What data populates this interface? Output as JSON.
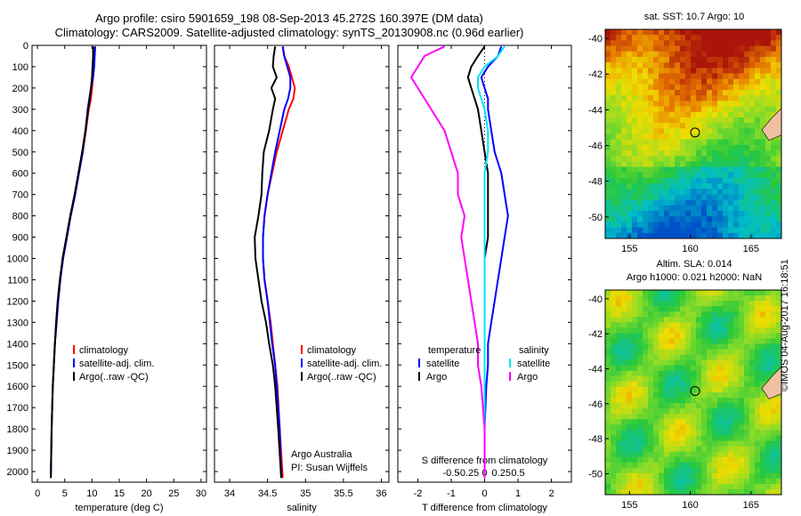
{
  "header": {
    "line1": "Argo profile: csiro 5901659_198 08-Sep-2013 45.272S 160.397E (DM data)",
    "line2": "Climatology: CARS2009. Satellite-adjusted climatology: synTS_20130908.nc (0.96d earlier)"
  },
  "colors": {
    "climatology": "#ff0000",
    "satellite": "#0000ff",
    "argo": "#000000",
    "sat_cyan": "#00e5ff",
    "argo_magenta": "#ff00ff"
  },
  "chart_data": [
    {
      "type": "line",
      "panel": "temperature",
      "xlabel": "temperature (deg C)",
      "xlim": [
        -1,
        31
      ],
      "xticks": [
        0,
        5,
        10,
        15,
        20,
        25,
        30
      ],
      "ylim": [
        2050,
        0
      ],
      "yticks": [
        0,
        100,
        200,
        300,
        400,
        500,
        600,
        700,
        800,
        900,
        1000,
        1100,
        1200,
        1300,
        1400,
        1500,
        1600,
        1700,
        1800,
        1900,
        2000
      ],
      "legend": [
        "climatology",
        "satellite-adj. clim.",
        "Argo(..raw -QC)"
      ],
      "series": [
        {
          "name": "climatology",
          "x": [
            10.3,
            10.3,
            10.3,
            10.2,
            10.0,
            9.8,
            9.4,
            8.9,
            8.3,
            7.6,
            6.9,
            6.1,
            5.4,
            4.7,
            4.2,
            3.8,
            3.5,
            3.2,
            3.0,
            2.8,
            2.6,
            2.45
          ],
          "y": [
            5,
            50,
            100,
            150,
            200,
            250,
            300,
            400,
            500,
            600,
            700,
            800,
            900,
            1000,
            1100,
            1200,
            1300,
            1400,
            1500,
            1600,
            1800,
            2030
          ]
        },
        {
          "name": "satellite-adj. clim.",
          "x": [
            10.6,
            10.5,
            10.4,
            10.2,
            9.8,
            9.5,
            9.2,
            8.8,
            8.3,
            7.6,
            6.9,
            6.1,
            5.4,
            4.7,
            4.2,
            3.8,
            3.5,
            3.2,
            3.0,
            2.8,
            2.6,
            2.45
          ],
          "y": [
            5,
            50,
            100,
            150,
            200,
            250,
            300,
            400,
            500,
            600,
            700,
            800,
            900,
            1000,
            1100,
            1200,
            1300,
            1400,
            1500,
            1600,
            1800,
            2030
          ]
        },
        {
          "name": "Argo(..raw -QC)",
          "x": [
            10.2,
            10.2,
            10.1,
            10.0,
            9.8,
            9.6,
            9.3,
            8.8,
            8.2,
            7.5,
            6.8,
            6.0,
            5.3,
            4.6,
            4.1,
            3.7,
            3.4,
            3.2,
            3.0,
            2.8,
            2.6,
            2.45
          ],
          "y": [
            5,
            50,
            100,
            150,
            200,
            250,
            300,
            400,
            500,
            600,
            700,
            800,
            900,
            1000,
            1100,
            1200,
            1300,
            1400,
            1500,
            1600,
            1800,
            2030
          ]
        }
      ]
    },
    {
      "type": "line",
      "panel": "salinity",
      "xlabel": "salinity",
      "xlim": [
        33.8,
        36.1
      ],
      "xticks": [
        34,
        34.5,
        35,
        35.5,
        36
      ],
      "ylim": [
        2050,
        0
      ],
      "legend": [
        "climatology",
        "satellite-adj. clim.",
        "Argo(..raw -QC)"
      ],
      "annotation": [
        "Argo Australia",
        "PI: Susan Wijffels"
      ],
      "series": [
        {
          "name": "climatology",
          "x": [
            34.7,
            34.72,
            34.78,
            34.82,
            34.86,
            34.84,
            34.78,
            34.7,
            34.62,
            34.56,
            34.5,
            34.46,
            34.44,
            34.44,
            34.46,
            34.5,
            34.54,
            34.57,
            34.6,
            34.63,
            34.66,
            34.7
          ],
          "y": [
            5,
            50,
            100,
            150,
            200,
            250,
            300,
            400,
            500,
            600,
            700,
            800,
            900,
            1000,
            1100,
            1200,
            1300,
            1400,
            1500,
            1600,
            1800,
            2030
          ]
        },
        {
          "name": "satellite-adj. clim.",
          "x": [
            34.7,
            34.72,
            34.76,
            34.8,
            34.8,
            34.77,
            34.72,
            34.66,
            34.6,
            34.55,
            34.5,
            34.46,
            34.44,
            34.44,
            34.46,
            34.5,
            34.53,
            34.56,
            34.6,
            34.62,
            34.66,
            34.68
          ],
          "y": [
            5,
            50,
            100,
            150,
            200,
            250,
            300,
            400,
            500,
            600,
            700,
            800,
            900,
            1000,
            1100,
            1200,
            1300,
            1400,
            1500,
            1600,
            1800,
            2030
          ]
        },
        {
          "name": "Argo(..raw -QC)",
          "x": [
            34.6,
            34.58,
            34.57,
            34.62,
            34.55,
            34.6,
            34.57,
            34.52,
            34.45,
            34.43,
            34.42,
            34.38,
            34.33,
            34.34,
            34.38,
            34.42,
            34.48,
            34.52,
            34.57,
            34.6,
            34.64,
            34.68
          ],
          "y": [
            5,
            50,
            100,
            150,
            200,
            250,
            300,
            400,
            500,
            600,
            700,
            800,
            900,
            1000,
            1100,
            1200,
            1300,
            1400,
            1500,
            1600,
            1800,
            2030
          ]
        }
      ]
    },
    {
      "type": "line",
      "panel": "difference",
      "xlabel": "T difference from climatology",
      "xlabel_top": "S difference from climatology",
      "xticks_T": [
        -2,
        -1,
        0,
        1,
        2
      ],
      "xticks_S": [
        -0.5,
        -0.25,
        0,
        0.25,
        0.5
      ],
      "xlim_T": [
        -2.6,
        2.6
      ],
      "ylim": [
        2050,
        0
      ],
      "legend_left_title": "temperature",
      "legend_right_title": "salinity",
      "legend": [
        "satellite",
        "Argo",
        "satellite",
        "Argo"
      ],
      "series": [
        {
          "name": "satellite",
          "x": [
            0.5,
            0.4,
            0.1,
            -0.1,
            0.0,
            0.1,
            0.1,
            0.2,
            0.3,
            0.5,
            0.6,
            0.7,
            0.6,
            0.5,
            0.4,
            0.3,
            0.2,
            0.1,
            0.1,
            0.05,
            0.0,
            0.0
          ],
          "y": [
            5,
            50,
            100,
            150,
            200,
            250,
            300,
            400,
            500,
            600,
            700,
            800,
            900,
            1000,
            1100,
            1200,
            1300,
            1400,
            1500,
            1600,
            1800,
            2030
          ]
        },
        {
          "name": "Argo",
          "x": [
            0.0,
            -0.2,
            -0.4,
            -0.5,
            -0.4,
            -0.3,
            -0.2,
            -0.1,
            0.0,
            0.1,
            0.1,
            0.1,
            0.1,
            0.0,
            0.0,
            0.0,
            0.0,
            0.0,
            0.0,
            0.0,
            0.0,
            0.0
          ],
          "y": [
            5,
            50,
            100,
            150,
            200,
            250,
            300,
            400,
            500,
            600,
            700,
            800,
            900,
            1000,
            1100,
            1200,
            1300,
            1400,
            1500,
            1600,
            1800,
            2030
          ]
        },
        {
          "name": "satellite",
          "x": [
            0.3,
            0.2,
            0.0,
            -0.1,
            -0.1,
            -0.05,
            0.0,
            0.05,
            0.05,
            0.0,
            0.0,
            0.0,
            0.0,
            0.0,
            0.0,
            0.0,
            0.0,
            0.0,
            0.0,
            0.0,
            0.0,
            0.0
          ],
          "y": [
            5,
            50,
            100,
            150,
            200,
            250,
            300,
            400,
            500,
            600,
            700,
            800,
            900,
            1000,
            1100,
            1200,
            1300,
            1400,
            1500,
            1600,
            1800,
            2030
          ]
        },
        {
          "name": "Argo",
          "x": [
            -0.6,
            -0.9,
            -1.0,
            -1.1,
            -1.0,
            -0.9,
            -0.8,
            -0.6,
            -0.5,
            -0.4,
            -0.4,
            -0.3,
            -0.35,
            -0.3,
            -0.25,
            -0.2,
            -0.15,
            -0.1,
            -0.1,
            -0.05,
            0.0,
            0.0
          ],
          "y": [
            5,
            50,
            100,
            150,
            200,
            250,
            300,
            400,
            500,
            600,
            700,
            800,
            900,
            1000,
            1100,
            1200,
            1300,
            1400,
            1500,
            1600,
            1800,
            2030
          ]
        }
      ]
    },
    {
      "type": "heatmap",
      "panel": "sst_map",
      "title": "sat. SST: 10.7 Argo: 10",
      "xticks": [
        155,
        160,
        165
      ],
      "yticks": [
        -40,
        -42,
        -44,
        -46,
        -48,
        -50
      ],
      "xlim": [
        153,
        167.5
      ],
      "ylim": [
        -51.2,
        -39.5
      ],
      "marker": {
        "lon": 160.397,
        "lat": -45.272
      }
    },
    {
      "type": "heatmap",
      "panel": "sla_map",
      "title_line1": "Altim. SLA: 0.014",
      "title_line2": "Argo h1000: 0.021 h2000: NaN",
      "xticks": [
        155,
        160,
        165
      ],
      "yticks": [
        -40,
        -42,
        -44,
        -46,
        -48,
        -50
      ],
      "xlim": [
        153,
        167.5
      ],
      "ylim": [
        -51.2,
        -39.5
      ],
      "marker": {
        "lon": 160.397,
        "lat": -45.272
      }
    }
  ],
  "footer": {
    "stamp": "©IMOS 04-Aug-2017 16:18:51"
  }
}
